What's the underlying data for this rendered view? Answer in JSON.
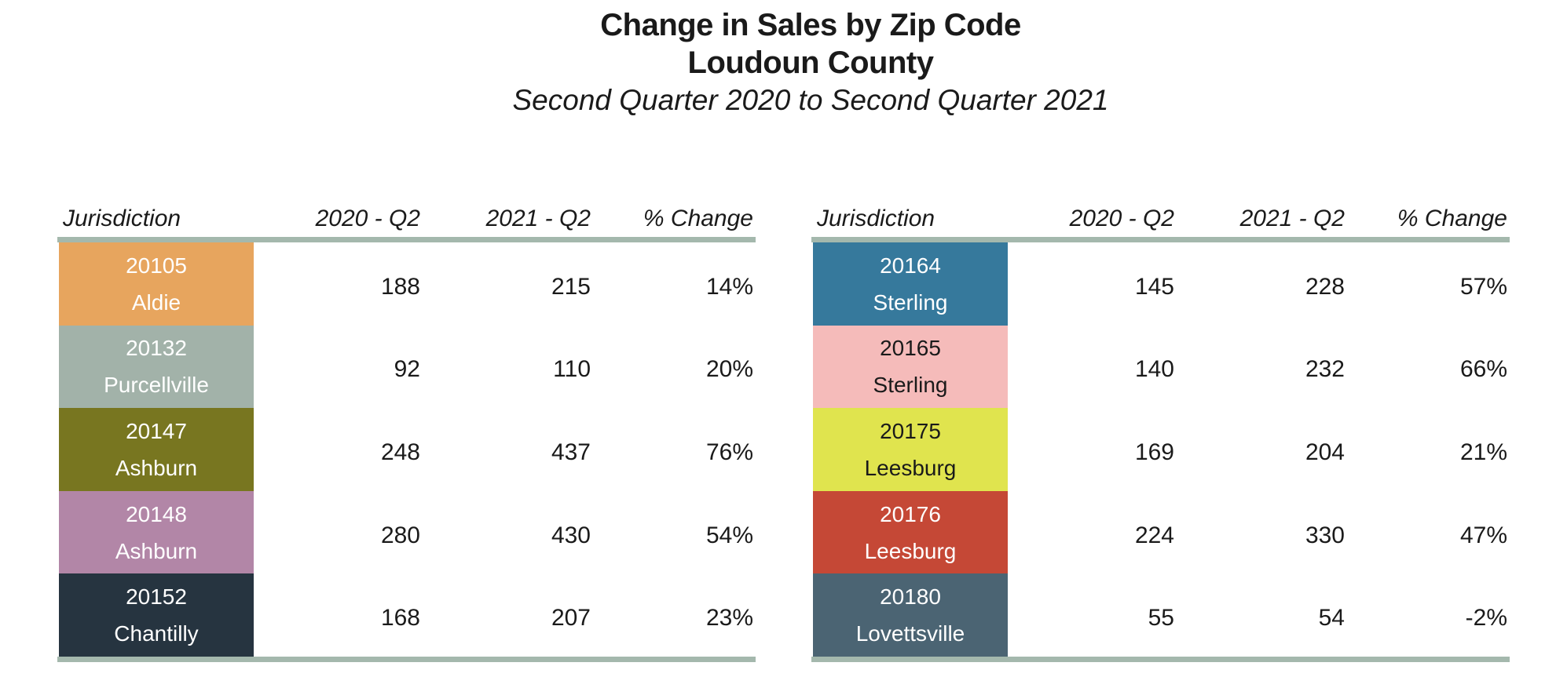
{
  "title": {
    "line1": "Change in Sales by Zip Code",
    "line2": "Loudoun County",
    "subtitle": "Second Quarter 2020 to Second Quarter 2021"
  },
  "columns": {
    "jurisdiction": "Jurisdiction",
    "q2020": "2020 - Q2",
    "q2021": "2021 - Q2",
    "pct": "% Change"
  },
  "colors": {
    "rule": "#a4b8ad",
    "text": "#1a1a1a",
    "light_cell_text": "#ffffff"
  },
  "tables": {
    "left": {
      "rows": [
        {
          "zip": "20105",
          "city": "Aldie",
          "color": "#e7a55e",
          "dark": false,
          "q2020": "188",
          "q2021": "215",
          "pct": "14%"
        },
        {
          "zip": "20132",
          "city": "Purcellville",
          "color": "#a2b2a9",
          "dark": false,
          "q2020": "92",
          "q2021": "110",
          "pct": "20%"
        },
        {
          "zip": "20147",
          "city": "Ashburn",
          "color": "#787620",
          "dark": false,
          "q2020": "248",
          "q2021": "437",
          "pct": "76%"
        },
        {
          "zip": "20148",
          "city": "Ashburn",
          "color": "#b286a7",
          "dark": false,
          "q2020": "280",
          "q2021": "430",
          "pct": "54%"
        },
        {
          "zip": "20152",
          "city": "Chantilly",
          "color": "#263440",
          "dark": false,
          "q2020": "168",
          "q2021": "207",
          "pct": "23%"
        }
      ]
    },
    "right": {
      "rows": [
        {
          "zip": "20164",
          "city": "Sterling",
          "color": "#36799c",
          "dark": false,
          "q2020": "145",
          "q2021": "228",
          "pct": "57%"
        },
        {
          "zip": "20165",
          "city": "Sterling",
          "color": "#f5bbba",
          "dark": true,
          "q2020": "140",
          "q2021": "232",
          "pct": "66%"
        },
        {
          "zip": "20175",
          "city": "Leesburg",
          "color": "#e0e44e",
          "dark": true,
          "q2020": "169",
          "q2021": "204",
          "pct": "21%"
        },
        {
          "zip": "20176",
          "city": "Leesburg",
          "color": "#c54836",
          "dark": false,
          "q2020": "224",
          "q2021": "330",
          "pct": "47%"
        },
        {
          "zip": "20180",
          "city": "Lovettsville",
          "color": "#4b6473",
          "dark": false,
          "q2020": "55",
          "q2021": "54",
          "pct": "-2%"
        }
      ]
    }
  },
  "chart_data": {
    "type": "table",
    "title": "Change in Sales by Zip Code",
    "subtitle": "Loudoun County",
    "period": "Second Quarter 2020 to Second Quarter 2021",
    "columns": [
      "Jurisdiction",
      "2020 - Q2",
      "2021 - Q2",
      "% Change"
    ],
    "rows": [
      {
        "jurisdiction": "20105 Aldie",
        "sales_2020_q2": 188,
        "sales_2021_q2": 215,
        "pct_change": "14%"
      },
      {
        "jurisdiction": "20132 Purcellville",
        "sales_2020_q2": 92,
        "sales_2021_q2": 110,
        "pct_change": "20%"
      },
      {
        "jurisdiction": "20147 Ashburn",
        "sales_2020_q2": 248,
        "sales_2021_q2": 437,
        "pct_change": "76%"
      },
      {
        "jurisdiction": "20148 Ashburn",
        "sales_2020_q2": 280,
        "sales_2021_q2": 430,
        "pct_change": "54%"
      },
      {
        "jurisdiction": "20152 Chantilly",
        "sales_2020_q2": 168,
        "sales_2021_q2": 207,
        "pct_change": "23%"
      },
      {
        "jurisdiction": "20164 Sterling",
        "sales_2020_q2": 145,
        "sales_2021_q2": 228,
        "pct_change": "57%"
      },
      {
        "jurisdiction": "20165 Sterling",
        "sales_2020_q2": 140,
        "sales_2021_q2": 232,
        "pct_change": "66%"
      },
      {
        "jurisdiction": "20175 Leesburg",
        "sales_2020_q2": 169,
        "sales_2021_q2": 204,
        "pct_change": "21%"
      },
      {
        "jurisdiction": "20176 Leesburg",
        "sales_2020_q2": 224,
        "sales_2021_q2": 330,
        "pct_change": "47%"
      },
      {
        "jurisdiction": "20180 Lovettsville",
        "sales_2020_q2": 55,
        "sales_2021_q2": 54,
        "pct_change": "-2%"
      }
    ]
  }
}
